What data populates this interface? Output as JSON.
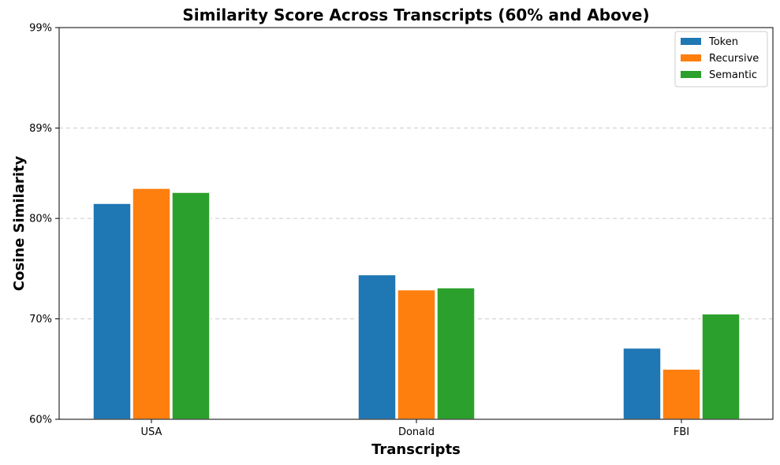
{
  "chart_data": {
    "type": "bar",
    "title": "Similarity Score Across Transcripts (60% and Above)",
    "xlabel": "Transcripts",
    "ylabel": "Cosine Similarity",
    "categories": [
      "USA",
      "Donald",
      "FBI"
    ],
    "series": [
      {
        "name": "Token",
        "color": "#1f77b4",
        "values": [
          81.5,
          74.4,
          67.1
        ]
      },
      {
        "name": "Recursive",
        "color": "#ff7f0e",
        "values": [
          83.0,
          72.9,
          65.0
        ]
      },
      {
        "name": "Semantic",
        "color": "#2ca02c",
        "values": [
          82.6,
          73.1,
          70.5
        ]
      }
    ],
    "ylim": [
      60,
      99
    ],
    "yticks": [
      60,
      70,
      80,
      89,
      99
    ],
    "ytick_labels": [
      "60%",
      "70%",
      "80%",
      "89%",
      "99%"
    ],
    "grid": "y-dashed",
    "legend_position": "top-right"
  }
}
